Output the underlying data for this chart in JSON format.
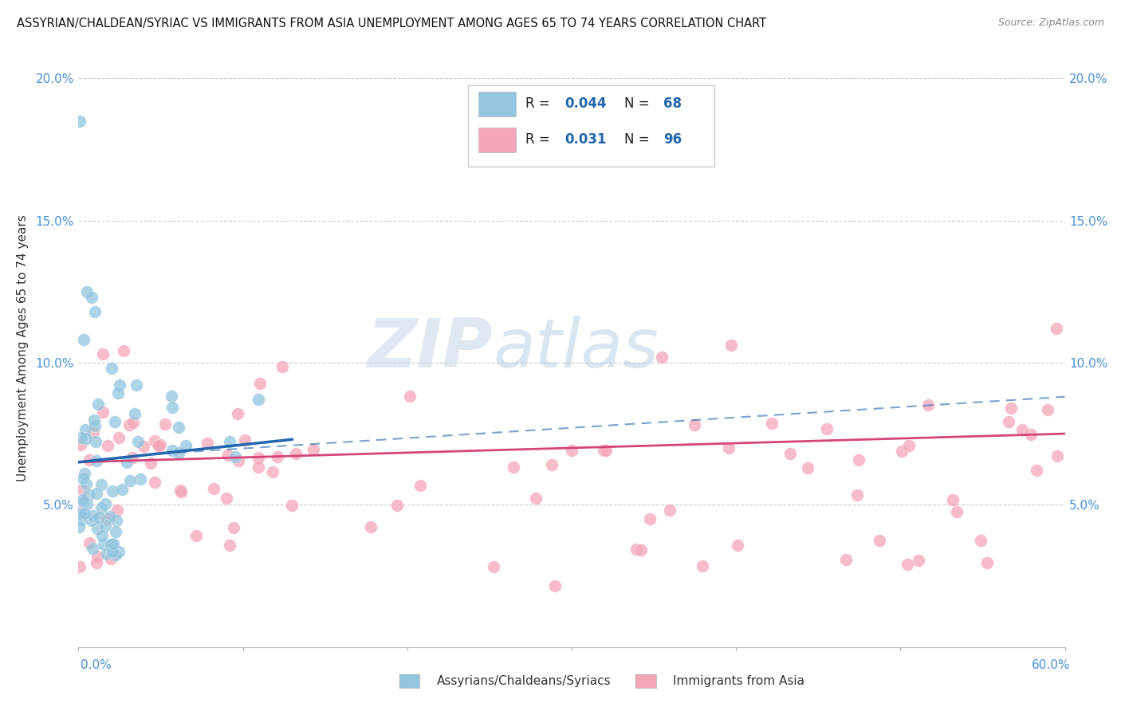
{
  "title": "ASSYRIAN/CHALDEAN/SYRIAC VS IMMIGRANTS FROM ASIA UNEMPLOYMENT AMONG AGES 65 TO 74 YEARS CORRELATION CHART",
  "source": "Source: ZipAtlas.com",
  "ylabel": "Unemployment Among Ages 65 to 74 years",
  "xlim": [
    0.0,
    0.6
  ],
  "ylim": [
    0.0,
    0.21
  ],
  "blue_color": "#92c5de",
  "pink_color": "#f4a6b8",
  "blue_line_color": "#2166ac",
  "pink_line_color": "#d6457a",
  "watermark_zip": "ZIP",
  "watermark_atlas": "atlas",
  "legend_r1": "0.044",
  "legend_n1": "68",
  "legend_r2": "0.031",
  "legend_n2": "96"
}
